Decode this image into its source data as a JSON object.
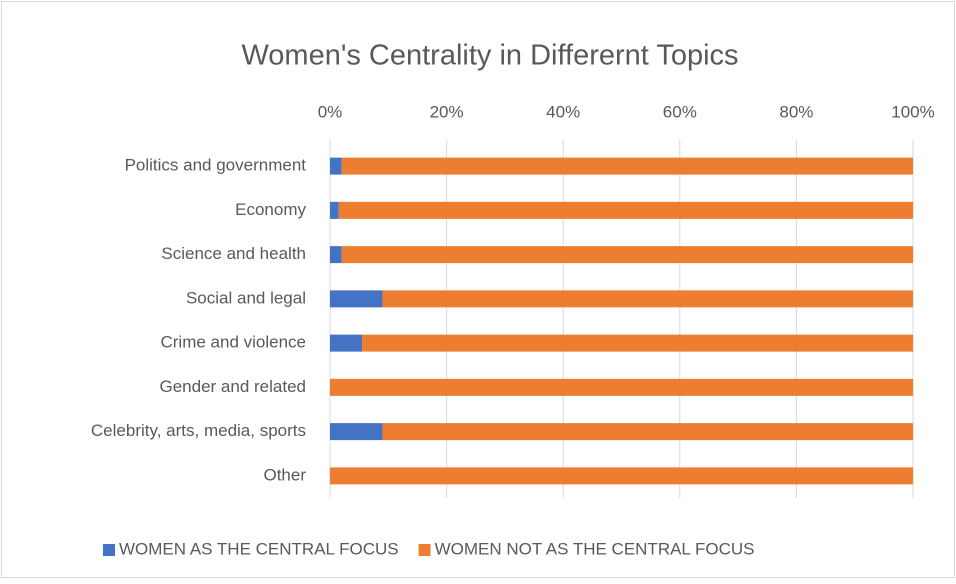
{
  "chart_data": {
    "type": "bar",
    "orientation": "horizontal",
    "stacked": true,
    "title": "Women's Centrality in Differernt Topics",
    "categories": [
      "Politics and government",
      "Economy",
      "Science and health",
      "Social and legal",
      "Crime and violence",
      "Gender and related",
      "Celebrity, arts, media, sports",
      "Other"
    ],
    "series": [
      {
        "name": "WOMEN AS THE CENTRAL FOCUS",
        "color": "#4472c4",
        "values": [
          2,
          1.5,
          2,
          9,
          5.5,
          0,
          9,
          0
        ]
      },
      {
        "name": "WOMEN NOT AS THE CENTRAL FOCUS",
        "color": "#ed7d31",
        "values": [
          98,
          98.5,
          98,
          91,
          94.5,
          100,
          91,
          100
        ]
      }
    ],
    "xlim": [
      0,
      100
    ],
    "xticks": [
      {
        "value": 0,
        "label": "0%"
      },
      {
        "value": 20,
        "label": "20%"
      },
      {
        "value": 40,
        "label": "40%"
      },
      {
        "value": 60,
        "label": "60%"
      },
      {
        "value": 80,
        "label": "80%"
      },
      {
        "value": 100,
        "label": "100%"
      }
    ],
    "grid": true,
    "legend": "bottom"
  }
}
